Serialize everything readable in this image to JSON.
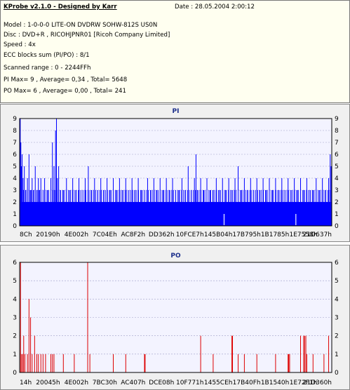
{
  "header": {
    "title": "KProbe v2.1.0 - Designed by Karr",
    "date": "Date : 28.05.2004 2:00:12",
    "lines": [
      "Model : 1-0-0-0 LITE-ON DVDRW SOHW-812S  US0N",
      "Disc : DVD+R , RICOHJPNR01 [Ricoh Company Limited]",
      "Speed : 4x",
      "ECC blocks sum (PI/PO) : 8/1",
      "Scanned range : 0 - 2244FFh",
      "PI Max= 9 , Average= 0,34 , Total= 5648",
      "PO Max= 6 , Average= 0,00 , Total= 241"
    ]
  },
  "colors": {
    "pi_bar": "#0000ff",
    "po_bar": "#dd0000",
    "plot_bg": "#f3f3ff",
    "grid": "#a0a0c8"
  },
  "chart_data": [
    {
      "type": "bar",
      "title": "PI",
      "ylim": [
        0,
        9
      ],
      "yticks": [
        "0",
        "1",
        "2",
        "3",
        "4",
        "5",
        "6",
        "7",
        "8",
        "9"
      ],
      "xticks": [
        "8Ch",
        "20190h",
        "4E002h",
        "7C04Eh",
        "AC8F2h",
        "DD362h",
        "10FCE7h",
        "145B04h",
        "17B795h",
        "1B1785h",
        "1E7558h",
        "21D637h"
      ],
      "baseline_level": 2,
      "spikes": [
        [
          0.002,
          9
        ],
        [
          0.004,
          7
        ],
        [
          0.006,
          5
        ],
        [
          0.008,
          6
        ],
        [
          0.011,
          4
        ],
        [
          0.015,
          5
        ],
        [
          0.02,
          3
        ],
        [
          0.025,
          4
        ],
        [
          0.03,
          6
        ],
        [
          0.035,
          3
        ],
        [
          0.04,
          4
        ],
        [
          0.045,
          3
        ],
        [
          0.05,
          5
        ],
        [
          0.055,
          3
        ],
        [
          0.06,
          4
        ],
        [
          0.064,
          3
        ],
        [
          0.068,
          4
        ],
        [
          0.075,
          3
        ],
        [
          0.08,
          4
        ],
        [
          0.09,
          3
        ],
        [
          0.1,
          4
        ],
        [
          0.105,
          7
        ],
        [
          0.11,
          5
        ],
        [
          0.115,
          8
        ],
        [
          0.118,
          9
        ],
        [
          0.121,
          4
        ],
        [
          0.125,
          5
        ],
        [
          0.13,
          3
        ],
        [
          0.14,
          3
        ],
        [
          0.15,
          4
        ],
        [
          0.16,
          3
        ],
        [
          0.17,
          4
        ],
        [
          0.18,
          3
        ],
        [
          0.19,
          4
        ],
        [
          0.2,
          3
        ],
        [
          0.21,
          4
        ],
        [
          0.22,
          5
        ],
        [
          0.23,
          3
        ],
        [
          0.24,
          4
        ],
        [
          0.25,
          3
        ],
        [
          0.26,
          4
        ],
        [
          0.27,
          3
        ],
        [
          0.28,
          4
        ],
        [
          0.29,
          3
        ],
        [
          0.3,
          4
        ],
        [
          0.31,
          3
        ],
        [
          0.32,
          4
        ],
        [
          0.33,
          3
        ],
        [
          0.34,
          4
        ],
        [
          0.35,
          3
        ],
        [
          0.36,
          4
        ],
        [
          0.37,
          3
        ],
        [
          0.38,
          4
        ],
        [
          0.39,
          3
        ],
        [
          0.4,
          3
        ],
        [
          0.41,
          4
        ],
        [
          0.42,
          3
        ],
        [
          0.43,
          4
        ],
        [
          0.44,
          3
        ],
        [
          0.45,
          4
        ],
        [
          0.46,
          3
        ],
        [
          0.47,
          4
        ],
        [
          0.48,
          3
        ],
        [
          0.49,
          4
        ],
        [
          0.5,
          3
        ],
        [
          0.51,
          3
        ],
        [
          0.52,
          4
        ],
        [
          0.53,
          3
        ],
        [
          0.54,
          5
        ],
        [
          0.55,
          3
        ],
        [
          0.56,
          4
        ],
        [
          0.565,
          6
        ],
        [
          0.57,
          3
        ],
        [
          0.58,
          4
        ],
        [
          0.59,
          3
        ],
        [
          0.6,
          4
        ],
        [
          0.61,
          3
        ],
        [
          0.62,
          3
        ],
        [
          0.63,
          4
        ],
        [
          0.64,
          3
        ],
        [
          0.65,
          4
        ],
        [
          0.66,
          3
        ],
        [
          0.67,
          4
        ],
        [
          0.68,
          3
        ],
        [
          0.69,
          4
        ],
        [
          0.7,
          5
        ],
        [
          0.71,
          3
        ],
        [
          0.72,
          4
        ],
        [
          0.73,
          3
        ],
        [
          0.74,
          4
        ],
        [
          0.75,
          3
        ],
        [
          0.76,
          4
        ],
        [
          0.77,
          3
        ],
        [
          0.78,
          4
        ],
        [
          0.79,
          3
        ],
        [
          0.8,
          4
        ],
        [
          0.81,
          3
        ],
        [
          0.82,
          4
        ],
        [
          0.83,
          3
        ],
        [
          0.84,
          4
        ],
        [
          0.85,
          3
        ],
        [
          0.86,
          4
        ],
        [
          0.87,
          3
        ],
        [
          0.88,
          4
        ],
        [
          0.89,
          3
        ],
        [
          0.9,
          4
        ],
        [
          0.91,
          3
        ],
        [
          0.92,
          4
        ],
        [
          0.93,
          3
        ],
        [
          0.94,
          3
        ],
        [
          0.95,
          4
        ],
        [
          0.96,
          3
        ],
        [
          0.97,
          4
        ],
        [
          0.98,
          3
        ],
        [
          0.99,
          4
        ],
        [
          0.995,
          6
        ],
        [
          0.998,
          5
        ]
      ],
      "gaps": [
        0.655,
        0.885
      ]
    },
    {
      "type": "bar",
      "title": "PO",
      "ylim": [
        0,
        6
      ],
      "yticks": [
        "0",
        "1",
        "2",
        "3",
        "4",
        "5",
        "6"
      ],
      "xticks": [
        "14h",
        "20045h",
        "4E002h",
        "7BC30h",
        "AC407h",
        "DCE08h",
        "10F771h",
        "1455CEh",
        "17B40Fh",
        "1B1540h",
        "1E72F1h",
        "21D360h"
      ],
      "spikes": [
        [
          0.003,
          6
        ],
        [
          0.006,
          1
        ],
        [
          0.01,
          1
        ],
        [
          0.013,
          2
        ],
        [
          0.017,
          1
        ],
        [
          0.025,
          1
        ],
        [
          0.03,
          4
        ],
        [
          0.035,
          3
        ],
        [
          0.04,
          1
        ],
        [
          0.048,
          2
        ],
        [
          0.055,
          1
        ],
        [
          0.06,
          1
        ],
        [
          0.068,
          1
        ],
        [
          0.075,
          1
        ],
        [
          0.083,
          1
        ],
        [
          0.1,
          1
        ],
        [
          0.105,
          1
        ],
        [
          0.11,
          1
        ],
        [
          0.14,
          1
        ],
        [
          0.175,
          1
        ],
        [
          0.218,
          6
        ],
        [
          0.225,
          1
        ],
        [
          0.3,
          1
        ],
        [
          0.34,
          1
        ],
        [
          0.4,
          1
        ],
        [
          0.402,
          1
        ],
        [
          0.58,
          2
        ],
        [
          0.62,
          1
        ],
        [
          0.68,
          2
        ],
        [
          0.682,
          2
        ],
        [
          0.7,
          1
        ],
        [
          0.72,
          1
        ],
        [
          0.76,
          1
        ],
        [
          0.82,
          1
        ],
        [
          0.86,
          1
        ],
        [
          0.862,
          1
        ],
        [
          0.865,
          1
        ],
        [
          0.9,
          2
        ],
        [
          0.91,
          2
        ],
        [
          0.913,
          2
        ],
        [
          0.917,
          2
        ],
        [
          0.92,
          1
        ],
        [
          0.94,
          1
        ],
        [
          0.975,
          1
        ],
        [
          0.99,
          2
        ]
      ]
    }
  ]
}
